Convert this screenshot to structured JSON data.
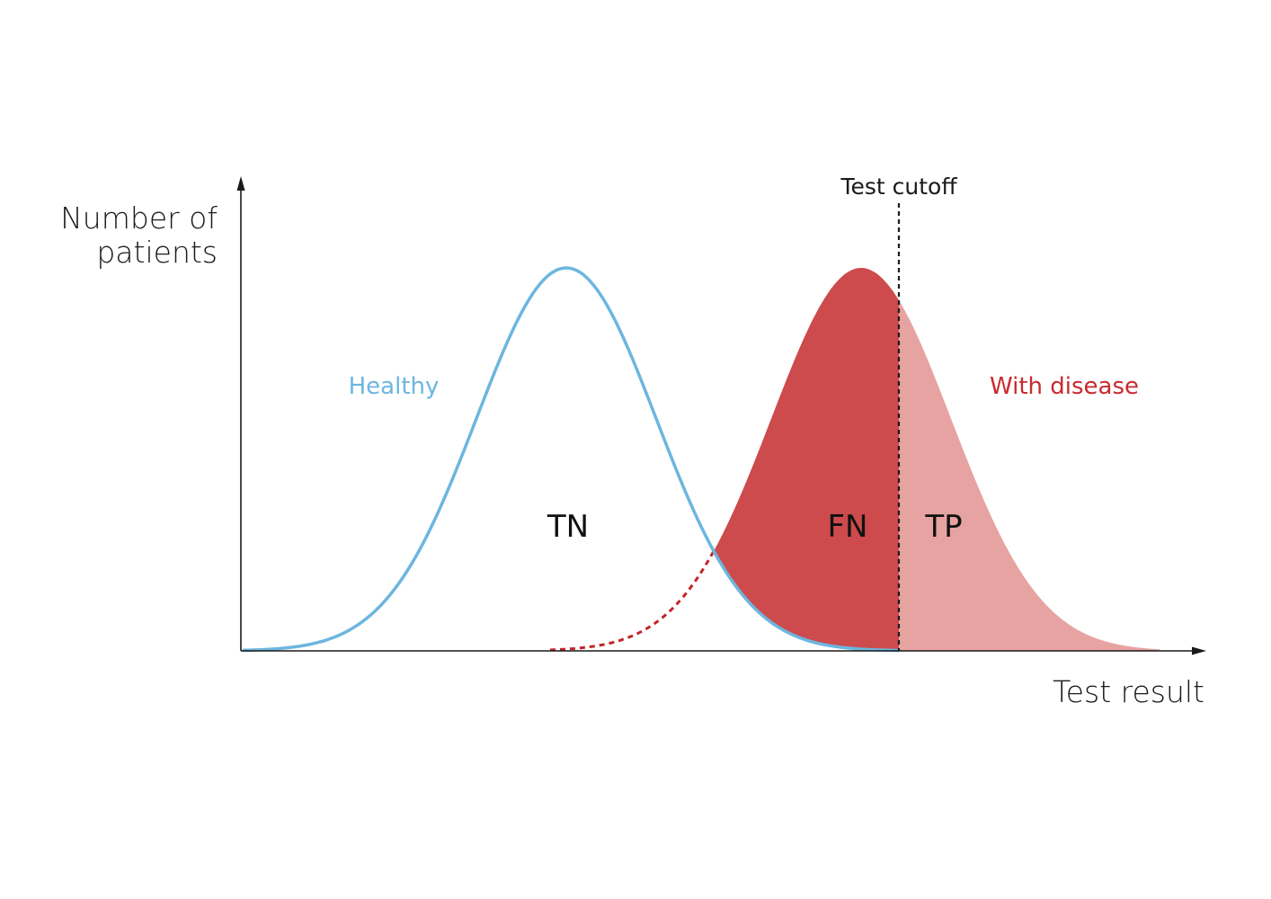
{
  "axes": {
    "y_label_line1": "Number of",
    "y_label_line2": "patients",
    "x_label": "Test result"
  },
  "cutoff": {
    "label": "Test cutoff"
  },
  "groups": {
    "healthy": {
      "label": "Healthy",
      "color": "#6cb6e0"
    },
    "disease": {
      "label": "With disease",
      "color": "#c92a2f"
    }
  },
  "regions": {
    "tn": {
      "label": "TN"
    },
    "fn": {
      "label": "FN",
      "color": "#cd4b4d"
    },
    "tp": {
      "label": "TP",
      "color": "#e6a3a2"
    }
  },
  "colors": {
    "axis": "#1a1a1a",
    "hidden_tail": "#c0252b"
  }
}
